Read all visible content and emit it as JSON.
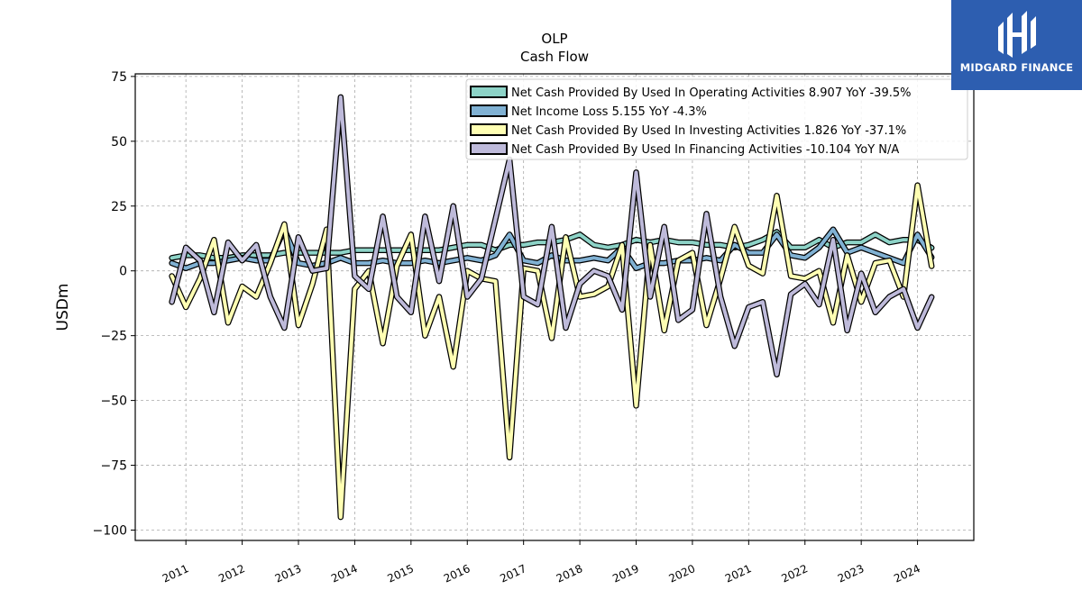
{
  "chart_data": {
    "type": "line",
    "title": "OLP",
    "subtitle": "Cash Flow",
    "ylabel": "USDm",
    "ylim": [
      -104,
      76
    ],
    "yticks": [
      75,
      50,
      25,
      0,
      -25,
      -50,
      -75,
      -100
    ],
    "ytick_labels": [
      "75",
      "50",
      "25",
      "0",
      "−25",
      "−50",
      "−75",
      "−100"
    ],
    "xlim": [
      2010.1,
      2025.0
    ],
    "xticks": [
      2011,
      2012,
      2013,
      2014,
      2015,
      2016,
      2017,
      2018,
      2019,
      2020,
      2021,
      2022,
      2023,
      2024
    ],
    "xtick_labels": [
      "2011",
      "2012",
      "2013",
      "2014",
      "2015",
      "2016",
      "2017",
      "2018",
      "2019",
      "2020",
      "2021",
      "2022",
      "2023",
      "2024"
    ],
    "grid": true,
    "legend_position": "top-right",
    "x": [
      2010.75,
      2011.0,
      2011.25,
      2011.5,
      2011.75,
      2012.0,
      2012.25,
      2012.5,
      2012.75,
      2013.0,
      2013.25,
      2013.5,
      2013.75,
      2014.0,
      2014.25,
      2014.5,
      2014.75,
      2015.0,
      2015.25,
      2015.5,
      2015.75,
      2016.0,
      2016.25,
      2016.5,
      2016.75,
      2017.0,
      2017.25,
      2017.5,
      2017.75,
      2018.0,
      2018.25,
      2018.5,
      2018.75,
      2019.0,
      2019.25,
      2019.5,
      2019.75,
      2020.0,
      2020.25,
      2020.5,
      2020.75,
      2021.0,
      2021.25,
      2021.5,
      2021.75,
      2022.0,
      2022.25,
      2022.5,
      2022.75,
      2023.0,
      2023.25,
      2023.5,
      2023.75,
      2024.0,
      2024.25
    ],
    "series": [
      {
        "name": "Net Cash Provided By Used In Operating Activities  8.907 YoY -39.5%",
        "color": "#8dd3c7",
        "values": [
          5,
          6,
          6,
          5,
          5,
          6,
          6,
          6,
          7,
          7,
          7,
          7,
          7,
          8,
          8,
          8,
          8,
          8,
          8,
          8,
          9,
          10,
          10,
          8,
          10,
          10,
          11,
          11,
          12,
          14,
          10,
          9,
          10,
          12,
          11,
          12,
          11,
          11,
          10,
          10,
          9,
          10,
          12,
          15,
          9,
          9,
          12,
          9,
          11,
          11,
          14,
          11,
          12,
          12,
          8.9
        ]
      },
      {
        "name": "Net Income Loss  5.155 YoY -4.3%",
        "color": "#80b1d3",
        "values": [
          3,
          1,
          3,
          3,
          4,
          5,
          4,
          4,
          16,
          3,
          2,
          3,
          5,
          3,
          3,
          4,
          3,
          3,
          4,
          3,
          4,
          5,
          4,
          6,
          14,
          4,
          3,
          6,
          4,
          4,
          5,
          4,
          9,
          1,
          3,
          3,
          4,
          4,
          5,
          4,
          10,
          7,
          7,
          14,
          6,
          5,
          9,
          16,
          7,
          9,
          7,
          5,
          3,
          14,
          5.2
        ]
      },
      {
        "name": "Net Cash Provided By Used In Investing Activities  1.826 YoY -37.1%",
        "color": "#ffffb3",
        "values": [
          -2,
          -14,
          -3,
          12,
          -20,
          -6,
          -10,
          3,
          18,
          -21,
          -5,
          16,
          -95,
          -7,
          0,
          -28,
          2,
          14,
          -25,
          -10,
          -37,
          0,
          -3,
          -4,
          -72,
          1,
          0,
          -26,
          13,
          -10,
          -9,
          -6,
          10,
          -52,
          10,
          -23,
          4,
          7,
          -21,
          -3,
          17,
          2,
          -1,
          29,
          -2,
          -3,
          0,
          -20,
          6,
          -12,
          3,
          4,
          -10,
          33,
          1.8
        ]
      },
      {
        "name": "Net Cash Provided By Used In Financing Activities  -10.104 YoY N/A",
        "color": "#bebada",
        "values": [
          -12,
          9,
          4,
          -16,
          11,
          4,
          10,
          -10,
          -22,
          13,
          0,
          1,
          67,
          -2,
          -7,
          21,
          -10,
          -16,
          21,
          -4,
          25,
          -10,
          -3,
          20,
          43,
          -10,
          -13,
          17,
          -22,
          -5,
          0,
          -2,
          -15,
          38,
          -10,
          17,
          -19,
          -15,
          22,
          -10,
          -29,
          -14,
          -12,
          -40,
          -9,
          -5,
          -13,
          12,
          -23,
          -1,
          -16,
          -10,
          -7,
          -22,
          -10.1
        ]
      }
    ]
  },
  "logo": {
    "text": "MIDGARD FINANCE",
    "color": "#2d5eb0"
  }
}
